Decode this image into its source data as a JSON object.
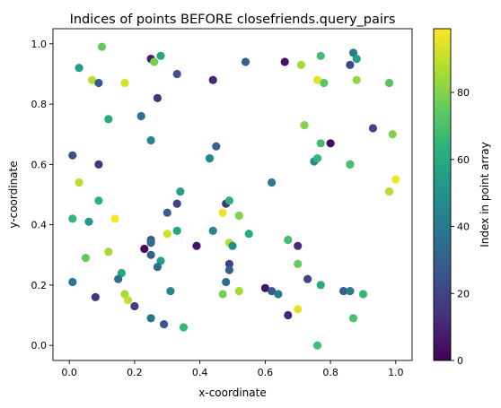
{
  "chart_data": {
    "type": "scatter",
    "title": "Indices of points BEFORE closefriends.query_pairs",
    "xlabel": "x-coordinate",
    "ylabel": "y-coordinate",
    "xlim": [
      -0.05,
      1.05
    ],
    "ylim": [
      -0.05,
      1.05
    ],
    "xticks": [
      "0.0",
      "0.2",
      "0.4",
      "0.6",
      "0.8",
      "1.0"
    ],
    "yticks": [
      "0.0",
      "0.2",
      "0.4",
      "0.6",
      "0.8",
      "1.0"
    ],
    "colormap": "viridis",
    "colorbar": {
      "label": "Index in point array",
      "range": [
        0,
        99
      ],
      "ticks": [
        "0",
        "20",
        "40",
        "60",
        "80"
      ]
    },
    "grid": false,
    "points": [
      {
        "x": 0.1,
        "y": 0.99,
        "c": 75
      },
      {
        "x": 0.28,
        "y": 0.96,
        "c": 58
      },
      {
        "x": 0.25,
        "y": 0.95,
        "c": 8
      },
      {
        "x": 0.26,
        "y": 0.94,
        "c": 78
      },
      {
        "x": 0.03,
        "y": 0.92,
        "c": 55
      },
      {
        "x": 0.33,
        "y": 0.9,
        "c": 25
      },
      {
        "x": 0.07,
        "y": 0.88,
        "c": 88
      },
      {
        "x": 0.09,
        "y": 0.87,
        "c": 28
      },
      {
        "x": 0.17,
        "y": 0.87,
        "c": 92
      },
      {
        "x": 0.44,
        "y": 0.88,
        "c": 10
      },
      {
        "x": 0.54,
        "y": 0.94,
        "c": 30
      },
      {
        "x": 0.66,
        "y": 0.94,
        "c": 5
      },
      {
        "x": 0.71,
        "y": 0.93,
        "c": 85
      },
      {
        "x": 0.77,
        "y": 0.96,
        "c": 68
      },
      {
        "x": 0.76,
        "y": 0.88,
        "c": 95
      },
      {
        "x": 0.78,
        "y": 0.87,
        "c": 73
      },
      {
        "x": 0.86,
        "y": 0.93,
        "c": 22
      },
      {
        "x": 0.87,
        "y": 0.97,
        "c": 40
      },
      {
        "x": 0.88,
        "y": 0.95,
        "c": 55
      },
      {
        "x": 0.88,
        "y": 0.88,
        "c": 83
      },
      {
        "x": 0.98,
        "y": 0.87,
        "c": 72
      },
      {
        "x": 0.27,
        "y": 0.82,
        "c": 15
      },
      {
        "x": 0.12,
        "y": 0.75,
        "c": 60
      },
      {
        "x": 0.22,
        "y": 0.76,
        "c": 38
      },
      {
        "x": 0.72,
        "y": 0.73,
        "c": 80
      },
      {
        "x": 0.93,
        "y": 0.72,
        "c": 20
      },
      {
        "x": 0.25,
        "y": 0.68,
        "c": 45
      },
      {
        "x": 0.45,
        "y": 0.66,
        "c": 30
      },
      {
        "x": 0.77,
        "y": 0.67,
        "c": 68
      },
      {
        "x": 0.8,
        "y": 0.67,
        "c": 3
      },
      {
        "x": 0.99,
        "y": 0.7,
        "c": 80
      },
      {
        "x": 0.01,
        "y": 0.63,
        "c": 24
      },
      {
        "x": 0.09,
        "y": 0.6,
        "c": 15
      },
      {
        "x": 0.43,
        "y": 0.62,
        "c": 45
      },
      {
        "x": 0.75,
        "y": 0.61,
        "c": 48
      },
      {
        "x": 0.76,
        "y": 0.62,
        "c": 65
      },
      {
        "x": 0.86,
        "y": 0.6,
        "c": 42
      },
      {
        "x": 0.86,
        "y": 0.6,
        "c": 70
      },
      {
        "x": 0.03,
        "y": 0.54,
        "c": 88
      },
      {
        "x": 0.34,
        "y": 0.51,
        "c": 55
      },
      {
        "x": 0.62,
        "y": 0.54,
        "c": 42
      },
      {
        "x": 1.0,
        "y": 0.55,
        "c": 97
      },
      {
        "x": 0.98,
        "y": 0.51,
        "c": 88
      },
      {
        "x": 0.09,
        "y": 0.48,
        "c": 63
      },
      {
        "x": 0.33,
        "y": 0.47,
        "c": 20
      },
      {
        "x": 0.48,
        "y": 0.47,
        "c": 15
      },
      {
        "x": 0.49,
        "y": 0.48,
        "c": 63
      },
      {
        "x": 0.3,
        "y": 0.44,
        "c": 30
      },
      {
        "x": 0.47,
        "y": 0.44,
        "c": 96
      },
      {
        "x": 0.01,
        "y": 0.42,
        "c": 65
      },
      {
        "x": 0.06,
        "y": 0.41,
        "c": 52
      },
      {
        "x": 0.14,
        "y": 0.42,
        "c": 98
      },
      {
        "x": 0.52,
        "y": 0.43,
        "c": 80
      },
      {
        "x": 0.25,
        "y": 0.35,
        "c": 25
      },
      {
        "x": 0.25,
        "y": 0.34,
        "c": 35
      },
      {
        "x": 0.33,
        "y": 0.38,
        "c": 58
      },
      {
        "x": 0.3,
        "y": 0.37,
        "c": 92
      },
      {
        "x": 0.44,
        "y": 0.38,
        "c": 45
      },
      {
        "x": 0.55,
        "y": 0.37,
        "c": 60
      },
      {
        "x": 0.39,
        "y": 0.33,
        "c": 5
      },
      {
        "x": 0.49,
        "y": 0.34,
        "c": 88
      },
      {
        "x": 0.5,
        "y": 0.33,
        "c": 48
      },
      {
        "x": 0.67,
        "y": 0.35,
        "c": 68
      },
      {
        "x": 0.7,
        "y": 0.33,
        "c": 12
      },
      {
        "x": 0.12,
        "y": 0.31,
        "c": 85
      },
      {
        "x": 0.23,
        "y": 0.32,
        "c": 3
      },
      {
        "x": 0.05,
        "y": 0.29,
        "c": 75
      },
      {
        "x": 0.25,
        "y": 0.3,
        "c": 30
      },
      {
        "x": 0.28,
        "y": 0.28,
        "c": 55
      },
      {
        "x": 0.27,
        "y": 0.26,
        "c": 35
      },
      {
        "x": 0.49,
        "y": 0.27,
        "c": 20
      },
      {
        "x": 0.49,
        "y": 0.25,
        "c": 30
      },
      {
        "x": 0.7,
        "y": 0.27,
        "c": 75
      },
      {
        "x": 0.16,
        "y": 0.24,
        "c": 58
      },
      {
        "x": 0.15,
        "y": 0.22,
        "c": 35
      },
      {
        "x": 0.01,
        "y": 0.21,
        "c": 40
      },
      {
        "x": 0.48,
        "y": 0.21,
        "c": 35
      },
      {
        "x": 0.73,
        "y": 0.22,
        "c": 20
      },
      {
        "x": 0.77,
        "y": 0.2,
        "c": 60
      },
      {
        "x": 0.31,
        "y": 0.18,
        "c": 45
      },
      {
        "x": 0.47,
        "y": 0.17,
        "c": 78
      },
      {
        "x": 0.52,
        "y": 0.18,
        "c": 85
      },
      {
        "x": 0.6,
        "y": 0.19,
        "c": 5
      },
      {
        "x": 0.62,
        "y": 0.18,
        "c": 28
      },
      {
        "x": 0.64,
        "y": 0.17,
        "c": 40
      },
      {
        "x": 0.84,
        "y": 0.18,
        "c": 30
      },
      {
        "x": 0.86,
        "y": 0.18,
        "c": 42
      },
      {
        "x": 0.9,
        "y": 0.17,
        "c": 65
      },
      {
        "x": 0.08,
        "y": 0.16,
        "c": 15
      },
      {
        "x": 0.17,
        "y": 0.17,
        "c": 85
      },
      {
        "x": 0.18,
        "y": 0.15,
        "c": 90
      },
      {
        "x": 0.2,
        "y": 0.13,
        "c": 18
      },
      {
        "x": 0.67,
        "y": 0.1,
        "c": 10
      },
      {
        "x": 0.7,
        "y": 0.12,
        "c": 95
      },
      {
        "x": 0.25,
        "y": 0.09,
        "c": 38
      },
      {
        "x": 0.29,
        "y": 0.07,
        "c": 28
      },
      {
        "x": 0.35,
        "y": 0.06,
        "c": 65
      },
      {
        "x": 0.87,
        "y": 0.09,
        "c": 70
      },
      {
        "x": 0.76,
        "y": 0.0,
        "c": 68
      }
    ]
  }
}
